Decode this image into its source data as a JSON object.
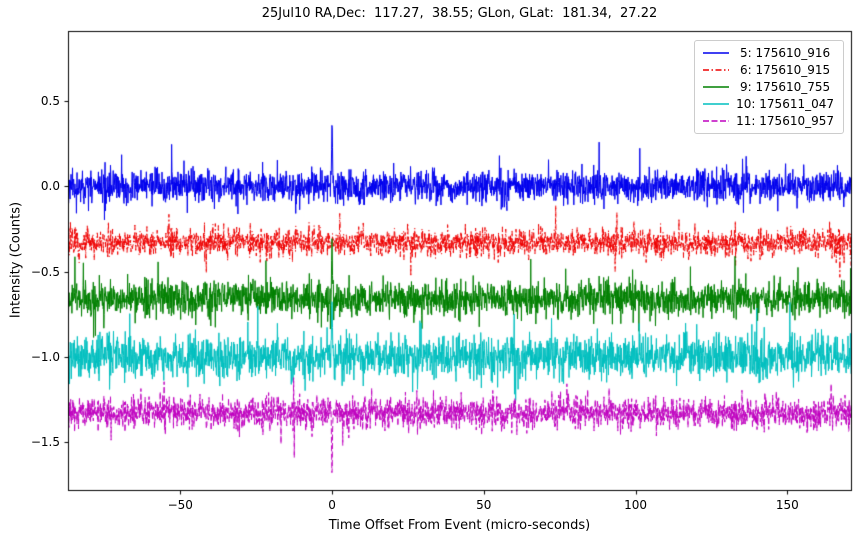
{
  "chart_data": {
    "type": "line",
    "title": "25Jul10 RA,Dec:  117.27,  38.55; GLon, GLat:  181.34,  27.22",
    "xlabel": "Time Offset From Event (micro-seconds)",
    "ylabel": "Intensity (Counts)",
    "xlim": [
      -87,
      171
    ],
    "ylim": [
      -1.78,
      0.91
    ],
    "xticks": [
      -50,
      0,
      50,
      100,
      150
    ],
    "yticks": [
      0.5,
      0.0,
      -0.5,
      -1.0,
      -1.5
    ],
    "grid": false,
    "legend_position": "upper right",
    "n_points": 2600,
    "spike_center": 0,
    "spike_width": 0.2,
    "series": [
      {
        "label": " 5: 175610_916",
        "color": "#0000ee",
        "linestyle": "solid",
        "baseline": 0.0,
        "noise_sigma": 0.045,
        "spike_amplitude": 0.43,
        "seed": 11
      },
      {
        "label": " 6: 175610_915",
        "color": "#ee0000",
        "linestyle": "dashdot",
        "baseline": -0.33,
        "noise_sigma": 0.04,
        "spike_amplitude": 0.0,
        "seed": 22
      },
      {
        "label": " 9: 175610_755",
        "color": "#008000",
        "linestyle": "solid",
        "baseline": -0.66,
        "noise_sigma": 0.05,
        "spike_amplitude": 0.37,
        "seed": 33
      },
      {
        "label": "10: 175611_047",
        "color": "#00bfbf",
        "linestyle": "solid",
        "baseline": -1.0,
        "noise_sigma": 0.06,
        "spike_amplitude": 0.42,
        "seed": 44
      },
      {
        "label": "11: 175610_957",
        "color": "#bf00bf",
        "linestyle": "dashed",
        "baseline": -1.33,
        "noise_sigma": 0.045,
        "spike_amplitude": -0.37,
        "seed": 55
      }
    ]
  }
}
